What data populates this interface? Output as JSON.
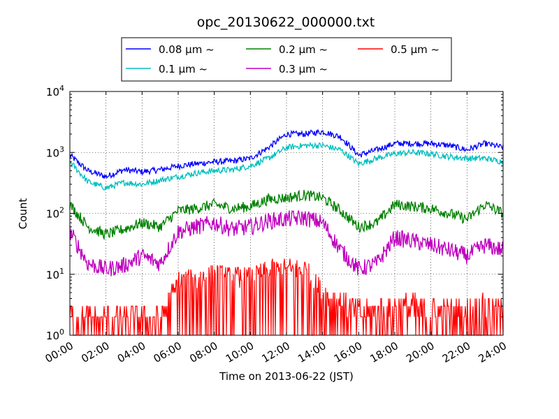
{
  "chart_data": {
    "type": "line",
    "title": "opc_20130622_000000.txt",
    "xlabel": "Time on 2013-06-22 (JST)",
    "ylabel": "Count",
    "y_scale": "log",
    "ylim": [
      1,
      10000
    ],
    "xlim_hours": [
      0,
      24
    ],
    "x_tick_labels": [
      "00:00",
      "02:00",
      "04:00",
      "06:00",
      "08:00",
      "10:00",
      "12:00",
      "14:00",
      "16:00",
      "18:00",
      "20:00",
      "22:00",
      "24:00"
    ],
    "y_tick_labels": [
      {
        "base": "10",
        "exp": "0"
      },
      {
        "base": "10",
        "exp": "1"
      },
      {
        "base": "10",
        "exp": "2"
      },
      {
        "base": "10",
        "exp": "3"
      },
      {
        "base": "10",
        "exp": "4"
      }
    ],
    "grid": true,
    "legend_position": "top-center",
    "series": [
      {
        "name": "0.08 μm ~",
        "color": "#0000ff",
        "x": [
          0,
          1,
          2,
          3,
          4,
          5,
          6,
          7,
          8,
          9,
          10,
          11,
          12,
          13,
          14,
          15,
          16,
          17,
          18,
          19,
          20,
          21,
          22,
          23,
          24
        ],
        "y": [
          900,
          500,
          400,
          520,
          480,
          520,
          600,
          650,
          700,
          720,
          800,
          1200,
          2000,
          2000,
          2200,
          1800,
          900,
          1100,
          1400,
          1400,
          1400,
          1300,
          1100,
          1400,
          1200
        ]
      },
      {
        "name": "0.1 μm ~",
        "color": "#00bfbf",
        "x": [
          0,
          1,
          2,
          3,
          4,
          5,
          6,
          7,
          8,
          9,
          10,
          11,
          12,
          13,
          14,
          15,
          16,
          17,
          18,
          19,
          20,
          21,
          22,
          23,
          24
        ],
        "y": [
          700,
          330,
          260,
          320,
          300,
          350,
          400,
          460,
          500,
          520,
          600,
          800,
          1200,
          1300,
          1300,
          1100,
          650,
          800,
          950,
          1000,
          950,
          850,
          800,
          800,
          700
        ]
      },
      {
        "name": "0.2 μm ~",
        "color": "#008000",
        "x": [
          0,
          1,
          2,
          3,
          4,
          5,
          6,
          7,
          8,
          9,
          10,
          11,
          12,
          13,
          14,
          15,
          16,
          17,
          18,
          19,
          20,
          21,
          22,
          23,
          24
        ],
        "y": [
          140,
          60,
          45,
          55,
          70,
          60,
          110,
          120,
          140,
          120,
          130,
          170,
          180,
          200,
          180,
          110,
          60,
          70,
          140,
          130,
          120,
          100,
          80,
          140,
          100
        ]
      },
      {
        "name": "0.3 μm ~",
        "color": "#bf00bf",
        "x": [
          0,
          1,
          2,
          3,
          4,
          5,
          6,
          7,
          8,
          9,
          10,
          11,
          12,
          13,
          14,
          15,
          16,
          17,
          18,
          19,
          20,
          21,
          22,
          23,
          24
        ],
        "y": [
          50,
          15,
          12,
          14,
          20,
          15,
          50,
          60,
          70,
          55,
          60,
          75,
          80,
          85,
          70,
          25,
          12,
          15,
          40,
          35,
          30,
          25,
          20,
          30,
          25
        ]
      },
      {
        "name": "0.5 μm ~",
        "color": "#ff0000",
        "x": [
          0,
          1,
          2,
          3,
          4,
          5,
          6,
          7,
          8,
          9,
          10,
          11,
          12,
          13,
          14,
          15,
          16,
          17,
          18,
          19,
          20,
          21,
          22,
          23,
          24
        ],
        "y": [
          2,
          1.5,
          1.5,
          1.5,
          1.5,
          1.5,
          6,
          7,
          8,
          7,
          7,
          9,
          10,
          10,
          4,
          3,
          2,
          2,
          2.5,
          2.5,
          2,
          2,
          2,
          2.5,
          2
        ]
      }
    ]
  }
}
